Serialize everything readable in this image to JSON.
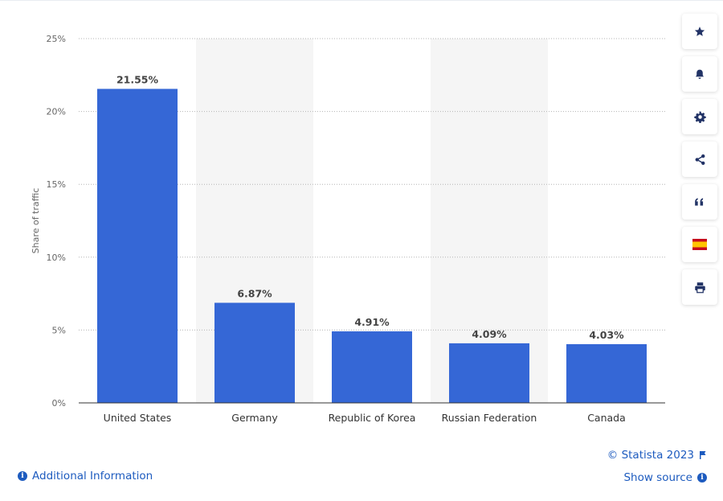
{
  "chart_data": {
    "type": "bar",
    "categories": [
      "United States",
      "Germany",
      "Republic of Korea",
      "Russian Federation",
      "Canada"
    ],
    "values": [
      21.55,
      6.87,
      4.91,
      4.09,
      4.03
    ],
    "data_labels": [
      "21.55%",
      "6.87%",
      "4.91%",
      "4.09%",
      "4.03%"
    ],
    "ylabel": "Share of traffic",
    "xlabel": "",
    "ylim": [
      0,
      25
    ],
    "yticks": [
      0,
      5,
      10,
      15,
      20,
      25
    ],
    "ytick_labels": [
      "0%",
      "5%",
      "10%",
      "15%",
      "20%",
      "25%"
    ],
    "grid": true,
    "bar_color": "#3567d6",
    "band_color": "#f5f5f5"
  },
  "toolbar": {
    "items": [
      "star-icon",
      "bell-icon",
      "gear-icon",
      "share-icon",
      "quote-icon",
      "spain-flag-icon",
      "print-icon"
    ]
  },
  "footer": {
    "additional_info": "Additional Information",
    "copyright": "© Statista 2023",
    "show_source": "Show source"
  },
  "colors": {
    "link": "#1d5bbf",
    "accent_flag_red": "#c60b1e",
    "accent_flag_yellow": "#ffc400"
  }
}
